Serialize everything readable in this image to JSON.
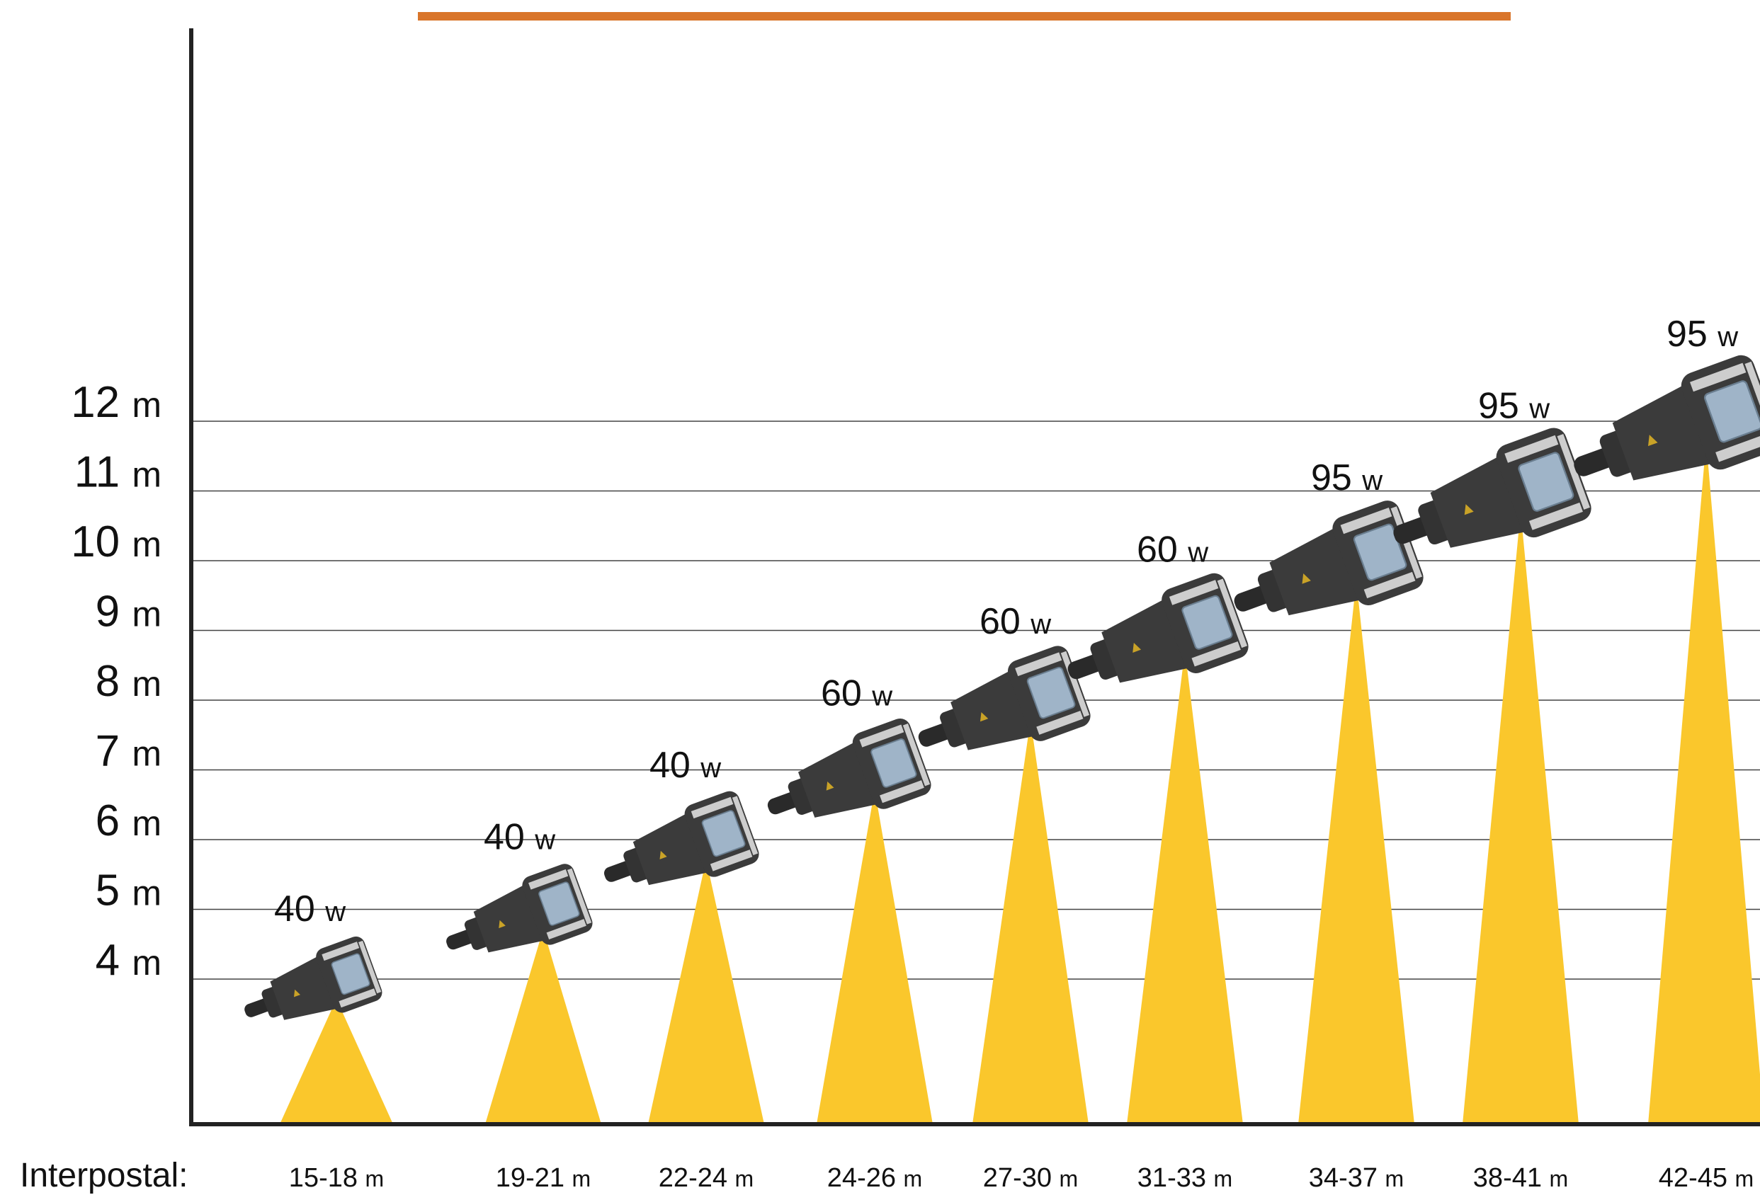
{
  "chart_data": {
    "type": "bar",
    "title": "",
    "xlabel": "Interpostal:",
    "ylabel": "",
    "ylim": [
      2.7,
      12.7
    ],
    "y_ticks": [
      {
        "value": 4,
        "num": "4",
        "unit": "m"
      },
      {
        "value": 5,
        "num": "5",
        "unit": "m"
      },
      {
        "value": 6,
        "num": "6",
        "unit": "m"
      },
      {
        "value": 7,
        "num": "7",
        "unit": "m"
      },
      {
        "value": 8,
        "num": "8",
        "unit": "m"
      },
      {
        "value": 9,
        "num": "9",
        "unit": "m"
      },
      {
        "value": 10,
        "num": "10",
        "unit": "m"
      },
      {
        "value": 11,
        "num": "11",
        "unit": "m"
      },
      {
        "value": 12,
        "num": "12",
        "unit": "m"
      }
    ],
    "grid": true,
    "categories": [
      "15-18 m",
      "19-21 m",
      "22-24 m",
      "24-26 m",
      "27-30 m",
      "31-33 m",
      "34-37 m",
      "38-41 m",
      "42-45 m"
    ],
    "items": [
      {
        "range": "15-18",
        "unit": "m",
        "height": 4,
        "watt": "40",
        "watt_unit": "w"
      },
      {
        "range": "19-21",
        "unit": "m",
        "height": 5,
        "watt": "40",
        "watt_unit": "w"
      },
      {
        "range": "22-24",
        "unit": "m",
        "height": 6,
        "watt": "40",
        "watt_unit": "w"
      },
      {
        "range": "24-26",
        "unit": "m",
        "height": 7,
        "watt": "60",
        "watt_unit": "w"
      },
      {
        "range": "27-30",
        "unit": "m",
        "height": 8,
        "watt": "60",
        "watt_unit": "w"
      },
      {
        "range": "31-33",
        "unit": "m",
        "height": 9,
        "watt": "60",
        "watt_unit": "w"
      },
      {
        "range": "34-37",
        "unit": "m",
        "height": 10,
        "watt": "95",
        "watt_unit": "w"
      },
      {
        "range": "38-41",
        "unit": "m",
        "height": 11,
        "watt": "95",
        "watt_unit": "w"
      },
      {
        "range": "42-45",
        "unit": "m",
        "height": 12,
        "watt": "95",
        "watt_unit": "w"
      }
    ],
    "legend": "none",
    "colors": {
      "beam": "#FAC72C",
      "luminaire": "#3B3B3B",
      "panel": "#9FB4C8",
      "grid": "#444444",
      "axis": "#222222",
      "header_bar": "#D9752B"
    },
    "icon": "street-light-icon"
  }
}
